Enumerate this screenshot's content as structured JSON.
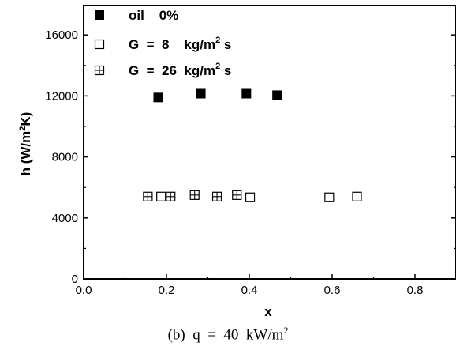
{
  "chart_data": {
    "type": "scatter",
    "xlabel": "x",
    "ylabel_parts": [
      "h (W/m",
      "2",
      "K)"
    ],
    "xlim": [
      0.0,
      0.9
    ],
    "ylim": [
      0,
      17600
    ],
    "xticks": [
      0.0,
      0.2,
      0.4,
      0.6,
      0.8
    ],
    "xtick_labels": [
      "0.0",
      "0.2",
      "0.4",
      "0.6",
      "0.8"
    ],
    "yticks": [
      0,
      4000,
      8000,
      12000,
      16000
    ],
    "ytick_labels": [
      "0",
      "4000",
      "8000",
      "12000",
      "16000"
    ],
    "legend_position": "top-left",
    "series": [
      {
        "name": "oil    0%",
        "name_parts": [
          "oil    0%"
        ],
        "marker": "filled-square",
        "x": [
          0.18,
          0.283,
          0.393,
          0.467
        ],
        "y": [
          11900,
          12150,
          12150,
          12050
        ]
      },
      {
        "name": "G = 8   kg/m2 s",
        "name_parts": [
          "G  =  8    kg/m",
          "2",
          " s"
        ],
        "marker": "open-square",
        "x": [
          0.187,
          0.402,
          0.593,
          0.66
        ],
        "y": [
          5400,
          5350,
          5350,
          5400
        ]
      },
      {
        "name": "G = 26  kg/m2 s",
        "name_parts": [
          "G  =  26  kg/m",
          "2",
          " s"
        ],
        "marker": "crossed-square",
        "x": [
          0.155,
          0.21,
          0.268,
          0.322,
          0.37
        ],
        "y": [
          5400,
          5400,
          5500,
          5400,
          5500
        ]
      }
    ]
  },
  "caption": {
    "prefix": "(b)  q  =  40  kW/m",
    "sup": "2"
  }
}
